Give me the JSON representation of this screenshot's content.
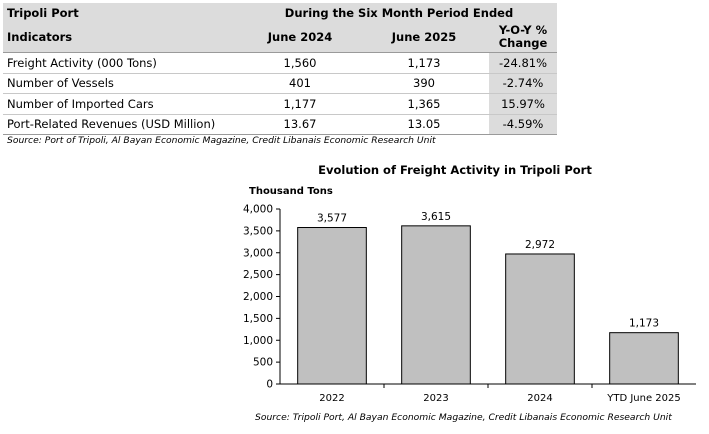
{
  "table": {
    "title": "Tripoli Port",
    "period_header": "During the Six Month Period Ended",
    "col_indicators": "Indicators",
    "col_2024": "June 2024",
    "col_2025": "June 2025",
    "col_yoy_line1": "Y-O-Y %",
    "col_yoy_line2": "Change",
    "rows": [
      {
        "label": "Freight Activity (000 Tons)",
        "v2024": "1,560",
        "v2025": "1,173",
        "yoy": "-24.81%"
      },
      {
        "label": "Number of Vessels",
        "v2024": "401",
        "v2025": "390",
        "yoy": "-2.74%"
      },
      {
        "label": "Number of Imported Cars",
        "v2024": "1,177",
        "v2025": "1,365",
        "yoy": "15.97%"
      },
      {
        "label": "Port-Related Revenues (USD Million)",
        "v2024": "13.67",
        "v2025": "13.05",
        "yoy": "-4.59%"
      }
    ],
    "source": "Source: Port of Tripoli, Al Bayan Economic Magazine, Credit Libanais Economic Research Unit"
  },
  "chart": {
    "title": "Evolution of Freight Activity in Tripoli Port",
    "unit_label": "Thousand Tons",
    "source": "Source: Tripoli Port, Al Bayan Economic Magazine, Credit Libanais Economic Research Unit"
  },
  "chart_data": {
    "type": "bar",
    "title": "Evolution of Freight Activity in Tripoli Port",
    "ylabel": "Thousand Tons",
    "categories": [
      "2022",
      "2023",
      "2024",
      "YTD June 2025"
    ],
    "values": [
      3577,
      3615,
      2972,
      1173
    ],
    "value_labels": [
      "3,577",
      "3,615",
      "2,972",
      "1,173"
    ],
    "y_ticks": [
      "0",
      "500",
      "1,000",
      "1,500",
      "2,000",
      "2,500",
      "3,000",
      "3,500",
      "4,000"
    ],
    "ylim": [
      0,
      4000
    ],
    "grid": false,
    "legend": "none",
    "bar_color": "#c0c0c0"
  }
}
